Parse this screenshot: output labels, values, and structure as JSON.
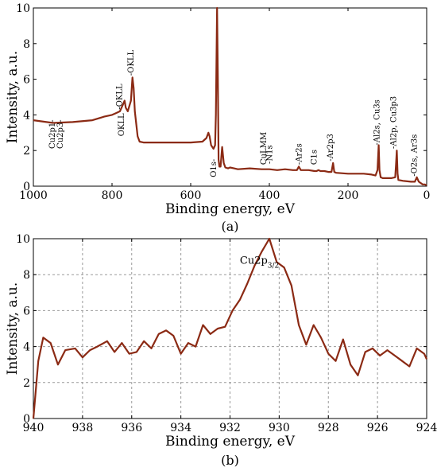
{
  "chart_data": [
    {
      "type": "line",
      "panel_label": "(a)",
      "xlabel": "Binding energy, eV",
      "ylabel": "Intensity, a.u.",
      "xlim": [
        1000,
        0
      ],
      "ylim": [
        0,
        10
      ],
      "x_reversed": true,
      "grid": false,
      "x_ticks": [
        1000,
        800,
        600,
        400,
        200,
        0
      ],
      "y_ticks": [
        0,
        2,
        4,
        6,
        8,
        10
      ],
      "series": [
        {
          "color": "#8b2a14",
          "x": [
            1000,
            950,
            900,
            850,
            820,
            800,
            790,
            780,
            772,
            768,
            765,
            760,
            752,
            748,
            745,
            742,
            738,
            735,
            730,
            720,
            700,
            650,
            600,
            570,
            560,
            555,
            552,
            548,
            545,
            542,
            538,
            536,
            534,
            533,
            531,
            529,
            527,
            524,
            520,
            516,
            512,
            505,
            500,
            490,
            480,
            450,
            420,
            400,
            380,
            360,
            340,
            330,
            325,
            320,
            315,
            300,
            285,
            280,
            275,
            270,
            260,
            250,
            242,
            238,
            235,
            230,
            200,
            180,
            160,
            140,
            130,
            125,
            122,
            120,
            117,
            112,
            100,
            90,
            80,
            78,
            76,
            74,
            72,
            60,
            40,
            30,
            25,
            20,
            10,
            5,
            0
          ],
          "y": [
            3.7,
            3.55,
            3.6,
            3.7,
            3.9,
            4.0,
            4.1,
            4.2,
            4.6,
            4.8,
            4.4,
            4.2,
            4.8,
            6.1,
            5.5,
            4.2,
            3.4,
            2.8,
            2.5,
            2.45,
            2.45,
            2.45,
            2.45,
            2.5,
            2.7,
            3.0,
            2.8,
            2.3,
            2.2,
            2.1,
            2.3,
            4.0,
            8.0,
            10.0,
            6.0,
            1.5,
            1.1,
            1.1,
            2.2,
            1.3,
            1.05,
            1.0,
            1.05,
            1.0,
            0.95,
            1.0,
            0.95,
            0.95,
            0.9,
            0.95,
            0.9,
            0.9,
            1.1,
            0.9,
            0.9,
            0.9,
            0.85,
            0.85,
            0.9,
            0.85,
            0.85,
            0.8,
            0.8,
            1.3,
            0.8,
            0.75,
            0.7,
            0.7,
            0.7,
            0.65,
            0.6,
            0.9,
            2.3,
            0.9,
            0.5,
            0.45,
            0.45,
            0.45,
            0.5,
            1.2,
            2.0,
            0.7,
            0.35,
            0.3,
            0.25,
            0.25,
            0.5,
            0.25,
            0.1,
            0.1,
            0.05
          ]
        }
      ],
      "annotations": [
        {
          "text": "Cu2p1-",
          "x": 945,
          "y": 2.1
        },
        {
          "text": "Cu2p3-",
          "x": 925,
          "y": 2.1
        },
        {
          "text": "-OKLL",
          "x": 775,
          "y": 4.3
        },
        {
          "text": "-OKLL",
          "x": 745,
          "y": 6.2
        },
        {
          "text": "OKLL",
          "x": 770,
          "y": 2.8
        },
        {
          "text": "O1s-",
          "x": 535,
          "y": 0.5
        },
        {
          "text": "CuLMM",
          "x": 408,
          "y": 1.2
        },
        {
          "text": "-N1s",
          "x": 393,
          "y": 1.25
        },
        {
          "text": "-Ar2s",
          "x": 318,
          "y": 1.2
        },
        {
          "text": "C1s",
          "x": 280,
          "y": 1.2
        },
        {
          "text": "-Ar2p3",
          "x": 238,
          "y": 1.4
        },
        {
          "text": "-Al2s, Cu3s",
          "x": 120,
          "y": 2.3
        },
        {
          "text": "-Al2p, Cu3p3",
          "x": 78,
          "y": 2.1
        },
        {
          "text": "-O2s, Ar3s",
          "x": 25,
          "y": 0.55
        }
      ]
    },
    {
      "type": "line",
      "panel_label": "(b)",
      "xlabel": "Binding energy, eV",
      "ylabel": "Intensity, a.u.",
      "xlim": [
        940,
        924
      ],
      "ylim": [
        0,
        10
      ],
      "x_reversed": true,
      "grid": true,
      "x_ticks": [
        940,
        938,
        936,
        934,
        932,
        930,
        928,
        926,
        924
      ],
      "y_ticks": [
        0,
        2,
        4,
        6,
        8,
        10
      ],
      "series": [
        {
          "color": "#8b2a14",
          "x": [
            940.0,
            939.8,
            939.6,
            939.3,
            939.0,
            938.7,
            938.3,
            938.0,
            937.7,
            937.4,
            937.0,
            936.7,
            936.4,
            936.1,
            935.8,
            935.5,
            935.2,
            934.9,
            934.6,
            934.3,
            934.0,
            933.7,
            933.4,
            933.1,
            932.8,
            932.5,
            932.2,
            931.9,
            931.6,
            931.3,
            931.0,
            930.7,
            930.4,
            930.1,
            929.8,
            929.5,
            929.2,
            928.9,
            928.6,
            928.3,
            928.0,
            927.7,
            927.4,
            927.1,
            926.8,
            926.5,
            926.2,
            925.9,
            925.6,
            925.3,
            925.0,
            924.7,
            924.4,
            924.1,
            924.0
          ],
          "y": [
            0.0,
            3.2,
            4.5,
            4.2,
            3.0,
            3.8,
            3.9,
            3.4,
            3.8,
            4.0,
            4.3,
            3.7,
            4.2,
            3.6,
            3.7,
            4.3,
            3.9,
            4.7,
            4.9,
            4.6,
            3.6,
            4.2,
            4.0,
            5.2,
            4.7,
            5.0,
            5.1,
            6.0,
            6.6,
            7.5,
            8.5,
            9.3,
            10.0,
            8.7,
            8.4,
            7.4,
            5.2,
            4.1,
            5.2,
            4.5,
            3.6,
            3.2,
            4.4,
            3.0,
            2.4,
            3.7,
            3.9,
            3.5,
            3.8,
            3.5,
            3.2,
            2.9,
            3.9,
            3.6,
            3.3
          ]
        }
      ],
      "annotations": [
        {
          "text": "Cu2p",
          "sub": "3/2",
          "x": 931.6,
          "y": 8.6
        }
      ]
    }
  ]
}
